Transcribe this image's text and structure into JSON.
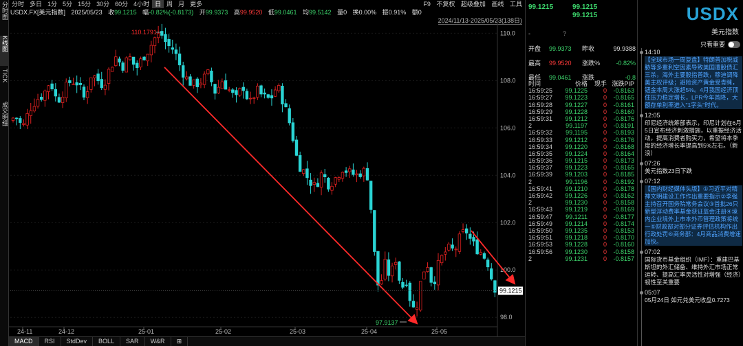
{
  "left_tabs": [
    "分时图",
    "K线图",
    "TICK",
    "成交明细"
  ],
  "periods": [
    "分时",
    "多日",
    "1分",
    "5分",
    "15分",
    "30分",
    "60分",
    "4小时",
    "日",
    "周",
    "月",
    "更多"
  ],
  "selected_period": "日",
  "tools": [
    "F9",
    "不复权",
    "超级叠加",
    "画线",
    "工具"
  ],
  "info": {
    "symbol": "USDX.FX[美元指数]",
    "date": "2025/05/23",
    "close_label": "收",
    "close": "99.1215",
    "chg_label": "幅",
    "chg": "-0.82%(-0.8173)",
    "open_label": "开",
    "open": "99.9373",
    "high_label": "高",
    "high": "99.9520",
    "low_label": "低",
    "low": "99.0461",
    "avg_label": "均",
    "avg": "99.5142",
    "vol_label": "量",
    "vol": "0",
    "turnover_label": "换",
    "turnover": "0.00%",
    "amp_label": "振",
    "amp": "0.91%",
    "amount_label": "额",
    "amount": "0"
  },
  "range": "2024/11/13-2025/05/23(138日)",
  "chart_data": {
    "type": "candlestick",
    "y_ticks": [
      "110.0",
      "108.0",
      "106.0",
      "104.0",
      "102.0",
      "100.0",
      "98.0"
    ],
    "ylim": [
      97.6,
      110.3
    ],
    "x_ticks": [
      "24-11",
      "24-12",
      "25-01",
      "25-02",
      "25-03",
      "25-04",
      "25-05"
    ],
    "high_label": "110.1791",
    "low_label": "97.9137",
    "last_price_label": "99.1215",
    "up_color": "#e02020",
    "down_color": "#2ad4d4",
    "annotation_color": "#ff2a2a"
  },
  "bottom_tabs": [
    "MACD",
    "RSI",
    "StdDev",
    "BOLL",
    "SAR",
    "W&R",
    "⊞"
  ],
  "quote": {
    "last1": "99.1215",
    "last2": "99.1215",
    "last3": "99.1215",
    "title": "USDX",
    "subtitle": "美元指数",
    "dash": "-",
    "q": "?",
    "rows": [
      {
        "l1": "开盘",
        "v1": "99.9373",
        "l2": "昨收",
        "v2": "99.9388"
      },
      {
        "l1": "最高",
        "v1": "99.9520",
        "l2": "涨跌%",
        "v2": "-0.82%"
      },
      {
        "l1": "最低",
        "v1": "99.0461",
        "l2": "涨跌",
        "v2": "-0.8"
      }
    ],
    "ts_headers": [
      "时间",
      "价格",
      "现手",
      "涨跌PIP"
    ],
    "ticks": [
      {
        "t": "16:59:25",
        "p": "99.1225",
        "v": "0",
        "d": "-0.8163"
      },
      {
        "t": "16:59:27",
        "p": "99.1223",
        "v": "0",
        "d": "-0.8165"
      },
      {
        "t": "16:59:28",
        "p": "99.1227",
        "v": "0",
        "d": "-0.8161"
      },
      {
        "t": "16:59:29",
        "p": "99.1228",
        "v": "0",
        "d": "-0.8160"
      },
      {
        "t": "16:59:31",
        "p": "99.1212",
        "v": "0",
        "d": "-0.8176"
      },
      {
        "t": "2",
        "p": "99.1197",
        "v": "0",
        "d": "-0.8191"
      },
      {
        "t": "16:59:32",
        "p": "99.1195",
        "v": "0",
        "d": "-0.8193"
      },
      {
        "t": "16:59:33",
        "p": "99.1212",
        "v": "0",
        "d": "-0.8176"
      },
      {
        "t": "16:59:34",
        "p": "99.1220",
        "v": "0",
        "d": "-0.8168"
      },
      {
        "t": "16:59:35",
        "p": "99.1224",
        "v": "0",
        "d": "-0.8164"
      },
      {
        "t": "16:59:36",
        "p": "99.1215",
        "v": "0",
        "d": "-0.8173"
      },
      {
        "t": "16:59:37",
        "p": "99.1223",
        "v": "0",
        "d": "-0.8165"
      },
      {
        "t": "16:59:39",
        "p": "99.1203",
        "v": "0",
        "d": "-0.8185"
      },
      {
        "t": "2",
        "p": "99.1196",
        "v": "0",
        "d": "-0.8192"
      },
      {
        "t": "16:59:41",
        "p": "99.1210",
        "v": "0",
        "d": "-0.8178"
      },
      {
        "t": "16:59:42",
        "p": "99.1226",
        "v": "0",
        "d": "-0.8162"
      },
      {
        "t": "2",
        "p": "99.1230",
        "v": "0",
        "d": "-0.8158"
      },
      {
        "t": "16:59:43",
        "p": "99.1219",
        "v": "0",
        "d": "-0.8169"
      },
      {
        "t": "16:59:47",
        "p": "99.1211",
        "v": "0",
        "d": "-0.8177"
      },
      {
        "t": "16:59:49",
        "p": "99.1214",
        "v": "0",
        "d": "-0.8174"
      },
      {
        "t": "16:59:50",
        "p": "99.1235",
        "v": "0",
        "d": "-0.8153"
      },
      {
        "t": "16:59:51",
        "p": "99.1218",
        "v": "0",
        "d": "-0.8170"
      },
      {
        "t": "16:59:53",
        "p": "99.1228",
        "v": "0",
        "d": "-0.8160"
      },
      {
        "t": "16:59:56",
        "p": "99.1230",
        "v": "0",
        "d": "-0.8158"
      },
      {
        "t": "2",
        "p": "99.1231",
        "v": "0",
        "d": "-0.8157"
      }
    ]
  },
  "news": {
    "important_only": "只看重要",
    "items": [
      {
        "time": "14:10",
        "body": "【全球市场一周复盘】特朗普加税威胁等多重利空因素导致美国遭股债汇三杀，海外主要股指普跌，穆迪调降美主权评级；避险资产黄金受青睐，钮金本周大涨超5%。4月我国经济顶住压力稳定增长，LPR今年首降，大额存单利率进入\"1字头\"时代。",
        "hl": true
      },
      {
        "time": "12:05",
        "body": "印尼经济统筹部表示，印尼计划在6月5日宣布经济刺激措施，以重振经济活动，提高消费者购买力，希望将本季度的经济增长率提高到5%左右。（新浪）",
        "hl": false
      },
      {
        "time": "07:26",
        "body": "美元指数23日下跌",
        "hl": false
      },
      {
        "time": "07:12",
        "body": "【国内财经媒体头版】①习近平对精神文明建设工作作出重要指示②李强主持召开国务院常务会议③首批26只新型浮动费率基金获证监会注册④境内企业境外上市本外币管理政策将统一⑤财政部对部分证券评估机构作出行政处罚⑥商务部：4月商品消费增速加快。",
        "hl": true
      },
      {
        "time": "07:02",
        "body": "国际货币基金组织（IMF）：重建巴基斯坦的外汇储备、维持外汇市场正常运转、提高汇率灵活性对增强（经济）韧性至关重要",
        "hl": false
      },
      {
        "time": "05:07",
        "body": "05月24日 如元兑美元收盘0.7273",
        "hl": false
      }
    ]
  }
}
